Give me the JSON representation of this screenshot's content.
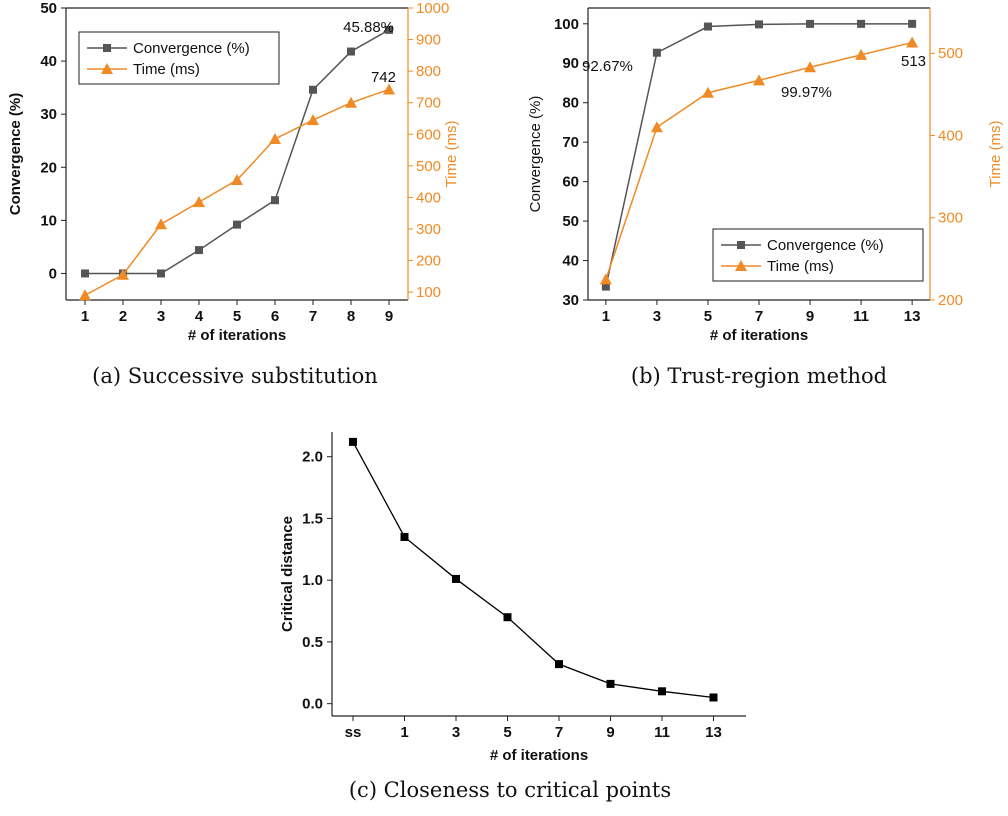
{
  "chart_data": [
    {
      "id": "a",
      "type": "line",
      "caption": "(a) Successive substitution",
      "xlabel": "# of iterations",
      "ylabel": "Convergence (%)",
      "y2label": "Time (ms)",
      "x": [
        1,
        2,
        3,
        4,
        5,
        6,
        7,
        8,
        9
      ],
      "xticks": [
        "1",
        "2",
        "3",
        "4",
        "5",
        "6",
        "7",
        "8",
        "9"
      ],
      "xlim": [
        0.5,
        9.5
      ],
      "ylim": [
        -5,
        50
      ],
      "yticks": [
        "0",
        "10",
        "20",
        "30",
        "40",
        "50"
      ],
      "y2lim": [
        75,
        1000
      ],
      "y2ticks": [
        "100",
        "200",
        "300",
        "400",
        "500",
        "600",
        "700",
        "800",
        "900",
        "1000"
      ],
      "series": [
        {
          "name": "Convergence (%)",
          "axis": "left",
          "color": "#555555",
          "marker": "square",
          "values": [
            0,
            0,
            0,
            4.4,
            9.2,
            13.8,
            34.6,
            41.8,
            45.88
          ]
        },
        {
          "name": "Time (ms)",
          "axis": "right",
          "color": "#f08a24",
          "marker": "triangle",
          "values": [
            90,
            155,
            315,
            385,
            455,
            585,
            645,
            700,
            742
          ]
        }
      ],
      "annotations": [
        "45.88%",
        "742"
      ],
      "legend": "top-left"
    },
    {
      "id": "b",
      "type": "line",
      "caption": "(b) Trust-region method",
      "xlabel": "# of iterations",
      "ylabel": "Convergence (%)",
      "y2label": "Time (ms)",
      "x": [
        1,
        3,
        5,
        7,
        9,
        11,
        13
      ],
      "xticks": [
        "1",
        "3",
        "5",
        "7",
        "9",
        "11",
        "13"
      ],
      "xlim": [
        0.3,
        13.7
      ],
      "ylim": [
        30,
        104
      ],
      "yticks": [
        "30",
        "40",
        "50",
        "60",
        "70",
        "80",
        "90",
        "100"
      ],
      "y2lim": [
        200,
        555
      ],
      "y2ticks": [
        "200",
        "300",
        "400",
        "500"
      ],
      "series": [
        {
          "name": "Convergence (%)",
          "axis": "left",
          "color": "#555555",
          "marker": "square",
          "values": [
            33.4,
            92.67,
            99.3,
            99.85,
            99.97,
            99.98,
            99.99
          ]
        },
        {
          "name": "Time (ms)",
          "axis": "right",
          "color": "#f08a24",
          "marker": "triangle",
          "values": [
            225,
            410,
            452,
            467,
            483,
            498,
            513
          ]
        }
      ],
      "annotations": [
        "92.67%",
        "99.97%",
        "513"
      ],
      "legend": "bottom-right"
    },
    {
      "id": "c",
      "type": "line",
      "caption": "(c) Closeness to critical points",
      "xlabel": "# of iterations",
      "ylabel": "Critical distance",
      "xticks": [
        "ss",
        "1",
        "3",
        "5",
        "7",
        "9",
        "11",
        "13"
      ],
      "ylim": [
        -0.1,
        2.2
      ],
      "yticks": [
        "0.0",
        "0.5",
        "1.0",
        "1.5",
        "2.0"
      ],
      "series": [
        {
          "color": "#000000",
          "marker": "square",
          "values": [
            2.12,
            1.35,
            1.01,
            0.7,
            0.32,
            0.16,
            0.1,
            0.05
          ]
        }
      ]
    }
  ]
}
